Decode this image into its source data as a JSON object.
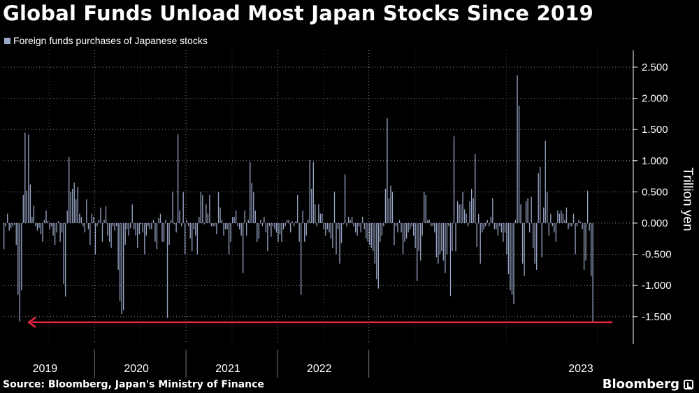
{
  "title": "Global Funds Unload Most Japan Stocks Since 2019",
  "source": "Source: Bloomberg, Japan's Ministry of Finance",
  "brand": "Bloomberg",
  "colors": {
    "bar": "#9aa7c8",
    "arrow": "#e8283c",
    "grid": "#8a8a8a",
    "background": "#000000",
    "text": "#ffffff"
  },
  "chart_data": {
    "type": "bar",
    "ylabel": "Trillion yen",
    "ylim": [
      -1.95,
      2.75
    ],
    "yticks": [
      2.5,
      2.0,
      1.5,
      1.0,
      0.5,
      0.0,
      -0.5,
      -1.0,
      -1.5
    ],
    "ytick_labels": [
      "2.500",
      "2.000",
      "1.500",
      "1.000",
      "0.500",
      "0.000",
      "-0.500",
      "-1.000",
      "-1.500"
    ],
    "grid": true,
    "legend_position": "top-left",
    "series": [
      {
        "name": "Foreign funds purchases of Japanese stocks",
        "start_week": "2019-01-05",
        "values": [
          -0.42,
          -0.05,
          0.15,
          -0.12,
          -0.08,
          -0.05,
          -0.03,
          -0.35,
          -1.15,
          -1.58,
          -1.08,
          0.45,
          1.45,
          0.52,
          1.42,
          0.62,
          0.1,
          0.28,
          -0.05,
          -0.12,
          -0.08,
          -0.18,
          -0.3,
          0.05,
          0.2,
          0.03,
          -0.1,
          -0.05,
          -0.2,
          -0.35,
          -0.15,
          0.03,
          -0.3,
          -0.15,
          -0.98,
          -1.18,
          0.2,
          1.06,
          0.5,
          0.55,
          0.65,
          0.38,
          0.58,
          0.15,
          0.1,
          -0.05,
          -0.15,
          0.38,
          -0.1,
          -0.35,
          0.15,
          0.1,
          -0.5,
          -0.05,
          0.05,
          0.25,
          -0.3,
          0.05,
          0.27,
          -0.2,
          -0.3,
          -0.4,
          -0.05,
          -0.12,
          -0.05,
          -0.75,
          -1.25,
          -1.46,
          -1.4,
          -0.35,
          -0.1,
          -0.2,
          -0.08,
          0.3,
          -0.1,
          -0.2,
          -0.4,
          -0.18,
          -0.02,
          -0.15,
          -0.5,
          -0.2,
          -0.05,
          -0.1,
          -0.1,
          0.05,
          -0.3,
          -0.42,
          0.08,
          0.15,
          -0.3,
          -0.3,
          0.05,
          -1.52,
          -0.35,
          0.05,
          0.5,
          -0.02,
          -0.15,
          1.42,
          0.2,
          -0.05,
          0.5,
          -0.5,
          0.05,
          -0.05,
          -0.25,
          -0.45,
          -0.1,
          -0.2,
          -0.5,
          0.1,
          0.5,
          0.45,
          -0.02,
          0.3,
          0.15,
          0.45,
          -0.05,
          -0.05,
          -0.05,
          -0.18,
          0.5,
          0.25,
          0.05,
          -0.2,
          -0.1,
          -0.1,
          -0.5,
          -0.3,
          0.1,
          0.1,
          0.2,
          -0.05,
          -0.1,
          -0.2,
          -0.8,
          0.2,
          -0.2,
          0.05,
          0.98,
          0.64,
          0.5,
          0.2,
          -0.3,
          -0.25,
          0.05,
          -0.05,
          0.1,
          -0.15,
          -0.45,
          -0.05,
          -0.22,
          -0.05,
          -0.1,
          -0.15,
          -0.3,
          -0.18,
          -0.3,
          -0.1,
          -0.05,
          0.05,
          0.05,
          -0.15,
          0.03,
          -0.05,
          0.03,
          0.45,
          -0.3,
          -1.15,
          0.2,
          -0.3,
          -0.2,
          0.05,
          1.01,
          0.55,
          0.98,
          0.3,
          -0.05,
          0.3,
          0.15,
          0.15,
          -0.1,
          -0.2,
          -0.1,
          -0.15,
          -0.25,
          -0.4,
          0.5,
          -0.5,
          -0.1,
          -0.65,
          -0.32,
          -0.02,
          0.78,
          -0.05,
          0.1,
          0.05,
          0.1,
          -0.05,
          -0.15,
          -0.2,
          -0.05,
          -0.15,
          0.1,
          -0.1,
          -0.25,
          -0.3,
          -0.35,
          -0.4,
          -0.45,
          -0.65,
          -0.9,
          -1.05,
          -0.3,
          -0.2,
          -0.05,
          0.55,
          1.68,
          0.4,
          0.6,
          0.5,
          -0.35,
          -0.05,
          -0.15,
          0.05,
          -0.15,
          -0.5,
          -0.3,
          -0.25,
          -0.15,
          -0.1,
          -0.05,
          -0.2,
          -0.4,
          -0.93,
          -0.45,
          -0.6,
          -0.2,
          0.5,
          0.45,
          0.05,
          0.05,
          -0.05,
          -0.05,
          -0.15,
          -0.55,
          -0.65,
          -0.5,
          -0.45,
          -0.6,
          -0.8,
          -0.5,
          -0.05,
          -1.17,
          -0.45,
          1.39,
          -0.45,
          0.35,
          0.3,
          0.3,
          0.5,
          0.22,
          0.15,
          -0.05,
          0.35,
          0.55,
          0.4,
          1.11,
          -0.38,
          0.15,
          -0.65,
          -0.15,
          -0.1,
          -0.05,
          0.05,
          -0.05,
          0.1,
          0.4,
          -0.1,
          -0.1,
          -0.2,
          -0.05,
          -0.15,
          -0.3,
          -0.15,
          -0.5,
          -0.82,
          -1.08,
          -1.15,
          -1.3,
          0.05,
          2.37,
          1.88,
          0.3,
          -0.65,
          -0.85,
          0.35,
          0.4,
          -0.15,
          0.42,
          -0.4,
          -0.65,
          -0.75,
          0.8,
          0.9,
          -0.55,
          0.25,
          1.32,
          0.5,
          -0.2,
          0.15,
          -0.05,
          -0.15,
          -0.3,
          0.2,
          0.15,
          0.2,
          0.15,
          0.05,
          0.25,
          -0.1,
          -0.05,
          -0.05,
          0.15,
          -0.5,
          -0.05,
          0.05,
          0.02,
          -0.1,
          -0.75,
          -0.6,
          0.52,
          -0.12,
          -0.85,
          -1.58
        ]
      }
    ],
    "x_year_labels": [
      "2019",
      "2020",
      "2021",
      "2022",
      "2023"
    ],
    "annotation": {
      "type": "arrow",
      "from_week": 346,
      "to_week": 8,
      "value": -1.58,
      "meaning": "latest weekly outflow matches the largest since 2019"
    }
  }
}
